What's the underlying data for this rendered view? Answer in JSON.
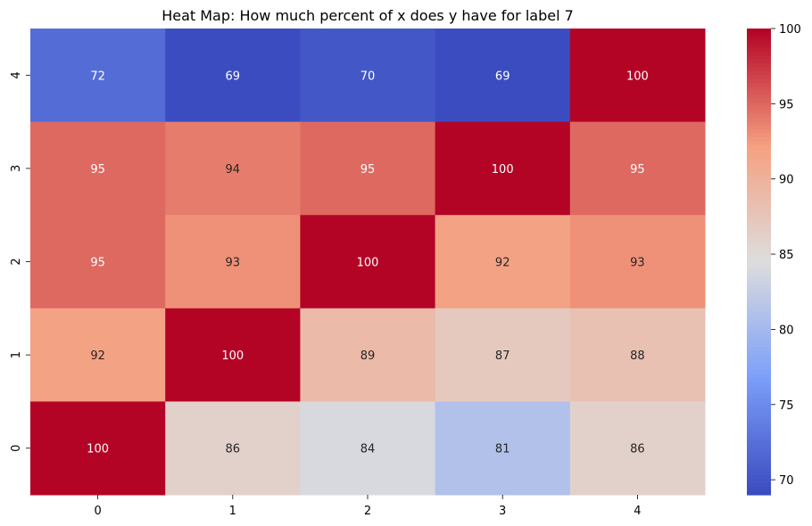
{
  "chart_data": {
    "type": "heatmap",
    "title": "Heat Map: How much percent of x does y have for label 7",
    "x_categories": [
      "0",
      "1",
      "2",
      "3",
      "4"
    ],
    "y_categories_top_to_bottom": [
      "4",
      "3",
      "2",
      "1",
      "0"
    ],
    "values_top_to_bottom": [
      [
        72,
        69,
        70,
        69,
        100
      ],
      [
        95,
        94,
        95,
        100,
        95
      ],
      [
        95,
        93,
        100,
        92,
        93
      ],
      [
        92,
        100,
        89,
        87,
        88
      ],
      [
        100,
        86,
        84,
        81,
        86
      ]
    ],
    "colormap": "coolwarm",
    "color_range": [
      69,
      100
    ],
    "colorbar_ticks": [
      "70",
      "75",
      "80",
      "85",
      "90",
      "95",
      "100"
    ],
    "colorbar_tick_values": [
      70,
      75,
      80,
      85,
      90,
      95,
      100
    ],
    "annotations": true,
    "grid": false
  }
}
